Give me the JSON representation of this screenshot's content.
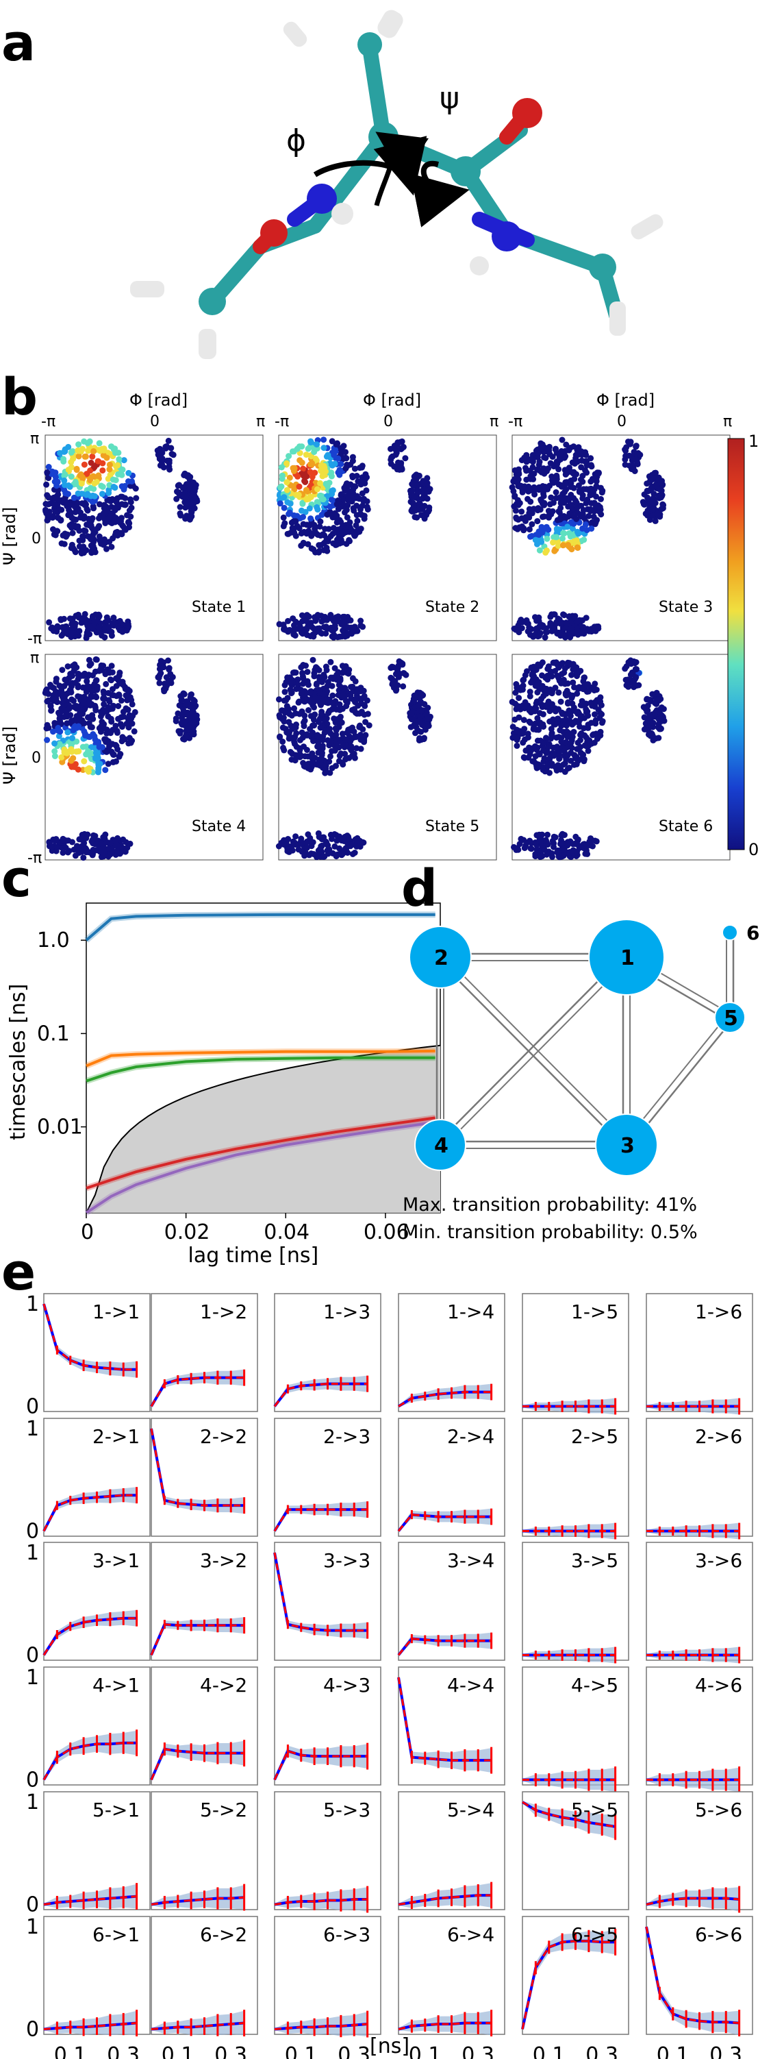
{
  "panel_labels": {
    "a": "a",
    "b": "b",
    "c": "c",
    "d": "d",
    "e": "e"
  },
  "panel_a": {
    "phi_symbol": "ϕ",
    "psi_symbol": "ψ"
  },
  "panel_b": {
    "x_axis_label": "Φ [rad]",
    "y_axis_label": "Ψ [rad]",
    "x_ticks": [
      "-π",
      "0",
      "π"
    ],
    "y_ticks": [
      "π",
      "0",
      "-π"
    ],
    "colorbar_ticks": [
      "1",
      "0"
    ],
    "states": [
      "State 1",
      "State 2",
      "State 3",
      "State 4",
      "State 5",
      "State 6"
    ]
  },
  "chart_data": [
    {
      "type": "line",
      "panel": "c",
      "xlabel": "lag time [ns]",
      "ylabel": "timescales [ns]",
      "x_ticks": [
        "0",
        "0.02",
        "0.04",
        "0.06"
      ],
      "y_ticks": [
        "1.0",
        "0.1",
        "0.01"
      ],
      "y_scale": "log",
      "xlim": [
        0,
        0.071
      ],
      "ylim": [
        0.0012,
        2.5
      ],
      "grid": false,
      "lag_times": [
        0,
        0.005,
        0.01,
        0.02,
        0.03,
        0.04,
        0.05,
        0.06,
        0.07
      ],
      "series": [
        {
          "color": "#1f77b4",
          "values": [
            1.0,
            1.7,
            1.8,
            1.85,
            1.87,
            1.88,
            1.88,
            1.88,
            1.88
          ]
        },
        {
          "color": "#ff7f0e",
          "values": [
            0.045,
            0.058,
            0.06,
            0.062,
            0.063,
            0.064,
            0.064,
            0.064,
            0.065
          ]
        },
        {
          "color": "#2ca02c",
          "values": [
            0.031,
            0.038,
            0.044,
            0.05,
            0.053,
            0.054,
            0.055,
            0.055,
            0.055
          ]
        },
        {
          "color": "#d62728",
          "values": [
            0.0022,
            0.0027,
            0.0033,
            0.0045,
            0.0058,
            0.0072,
            0.0088,
            0.0105,
            0.0125
          ]
        },
        {
          "color": "#9467bd",
          "values": [
            0.0012,
            0.0018,
            0.0024,
            0.0036,
            0.005,
            0.0064,
            0.0078,
            0.0094,
            0.0112
          ]
        }
      ]
    },
    {
      "type": "line",
      "panel": "e",
      "xlabel": "[ns]",
      "x_ticks": [
        "0.1",
        "0.3"
      ],
      "y_ticks": [
        "1",
        "0"
      ],
      "ylim": [
        -0.05,
        1.1
      ],
      "xlim": [
        0,
        0.4
      ],
      "lag_times": [
        0.0,
        0.05,
        0.1,
        0.15,
        0.2,
        0.25,
        0.3,
        0.35
      ],
      "error_bar_size": [
        0.0,
        0.02,
        0.02,
        0.03,
        0.03,
        0.04,
        0.04,
        0.05
      ],
      "grid_labels": [
        [
          "1->1",
          "1->2",
          "1->3",
          "1->4",
          "1->5",
          "1->6"
        ],
        [
          "2->1",
          "2->2",
          "2->3",
          "2->4",
          "2->5",
          "2->6"
        ],
        [
          "3->1",
          "3->2",
          "3->3",
          "3->4",
          "3->5",
          "3->6"
        ],
        [
          "4->1",
          "4->2",
          "4->3",
          "4->4",
          "4->5",
          "4->6"
        ],
        [
          "5->1",
          "5->2",
          "5->3",
          "5->4",
          "5->5",
          "5->6"
        ],
        [
          "6->1",
          "6->2",
          "6->3",
          "6->4",
          "6->5",
          "6->6"
        ]
      ],
      "values": [
        [
          [
            1.0,
            0.55,
            0.45,
            0.4,
            0.38,
            0.37,
            0.36,
            0.36
          ],
          [
            0,
            0.22,
            0.26,
            0.27,
            0.28,
            0.28,
            0.28,
            0.28
          ],
          [
            0,
            0.17,
            0.2,
            0.21,
            0.22,
            0.22,
            0.22,
            0.22
          ],
          [
            0,
            0.08,
            0.1,
            0.12,
            0.13,
            0.14,
            0.14,
            0.14
          ],
          [
            0,
            0,
            0,
            0,
            0,
            0,
            0,
            0
          ],
          [
            0,
            0,
            0,
            0,
            0,
            0,
            0,
            0
          ]
        ],
        [
          [
            0,
            0.25,
            0.3,
            0.32,
            0.33,
            0.34,
            0.35,
            0.35
          ],
          [
            1.0,
            0.3,
            0.27,
            0.26,
            0.25,
            0.25,
            0.25,
            0.25
          ],
          [
            0,
            0.21,
            0.21,
            0.21,
            0.21,
            0.21,
            0.21,
            0.21
          ],
          [
            0,
            0.16,
            0.15,
            0.14,
            0.14,
            0.14,
            0.14,
            0.14
          ],
          [
            0,
            0,
            0,
            0,
            0,
            0,
            0,
            0
          ],
          [
            0,
            0,
            0,
            0,
            0,
            0,
            0,
            0
          ]
        ],
        [
          [
            0,
            0.2,
            0.28,
            0.32,
            0.34,
            0.35,
            0.36,
            0.36
          ],
          [
            0,
            0.3,
            0.29,
            0.29,
            0.29,
            0.29,
            0.29,
            0.29
          ],
          [
            1.0,
            0.3,
            0.27,
            0.25,
            0.24,
            0.24,
            0.24,
            0.24
          ],
          [
            0,
            0.16,
            0.15,
            0.14,
            0.14,
            0.14,
            0.14,
            0.14
          ],
          [
            0,
            0,
            0,
            0,
            0,
            0,
            0,
            0
          ],
          [
            0,
            0,
            0,
            0,
            0,
            0,
            0,
            0
          ]
        ],
        [
          [
            0,
            0.22,
            0.3,
            0.33,
            0.35,
            0.35,
            0.36,
            0.36
          ],
          [
            0,
            0.3,
            0.28,
            0.27,
            0.26,
            0.26,
            0.26,
            0.26
          ],
          [
            0,
            0.28,
            0.24,
            0.23,
            0.23,
            0.23,
            0.23,
            0.23
          ],
          [
            1.0,
            0.22,
            0.21,
            0.2,
            0.19,
            0.19,
            0.19,
            0.19
          ],
          [
            0,
            0,
            0,
            0,
            0,
            0,
            0,
            0
          ],
          [
            0,
            0,
            0,
            0,
            0,
            0,
            0,
            0
          ]
        ],
        [
          [
            0,
            0.02,
            0.03,
            0.04,
            0.05,
            0.06,
            0.07,
            0.08
          ],
          [
            0,
            0.02,
            0.03,
            0.04,
            0.05,
            0.06,
            0.06,
            0.07
          ],
          [
            0,
            0.02,
            0.03,
            0.03,
            0.04,
            0.04,
            0.05,
            0.05
          ],
          [
            0,
            0.02,
            0.04,
            0.06,
            0.07,
            0.08,
            0.09,
            0.09
          ],
          [
            1.0,
            0.92,
            0.88,
            0.85,
            0.83,
            0.8,
            0.78,
            0.76
          ],
          [
            0,
            0.03,
            0.05,
            0.06,
            0.06,
            0.06,
            0.06,
            0.05
          ]
        ],
        [
          [
            0,
            0.01,
            0.02,
            0.02,
            0.03,
            0.04,
            0.05,
            0.06
          ],
          [
            0,
            0.01,
            0.02,
            0.02,
            0.03,
            0.04,
            0.05,
            0.06
          ],
          [
            0,
            0.01,
            0.02,
            0.02,
            0.03,
            0.03,
            0.04,
            0.05
          ],
          [
            0,
            0.03,
            0.04,
            0.05,
            0.05,
            0.06,
            0.06,
            0.06
          ],
          [
            0,
            0.6,
            0.8,
            0.85,
            0.86,
            0.86,
            0.85,
            0.85
          ],
          [
            1.0,
            0.35,
            0.15,
            0.1,
            0.08,
            0.07,
            0.07,
            0.06
          ]
        ]
      ],
      "series_colors": {
        "blue": "#0000ff",
        "red": "#ff0000",
        "band": "#9db8d8"
      }
    }
  ],
  "panel_d": {
    "nodes": [
      {
        "id": "1",
        "label": "1"
      },
      {
        "id": "2",
        "label": "2"
      },
      {
        "id": "3",
        "label": "3"
      },
      {
        "id": "4",
        "label": "4"
      },
      {
        "id": "5",
        "label": "5"
      },
      {
        "id": "6",
        "label": "6"
      }
    ],
    "node_color": "#00aaee",
    "max_prob_text": "Max. transition probability: 41%",
    "min_prob_text": "Min. transition probability: 0.5%"
  }
}
